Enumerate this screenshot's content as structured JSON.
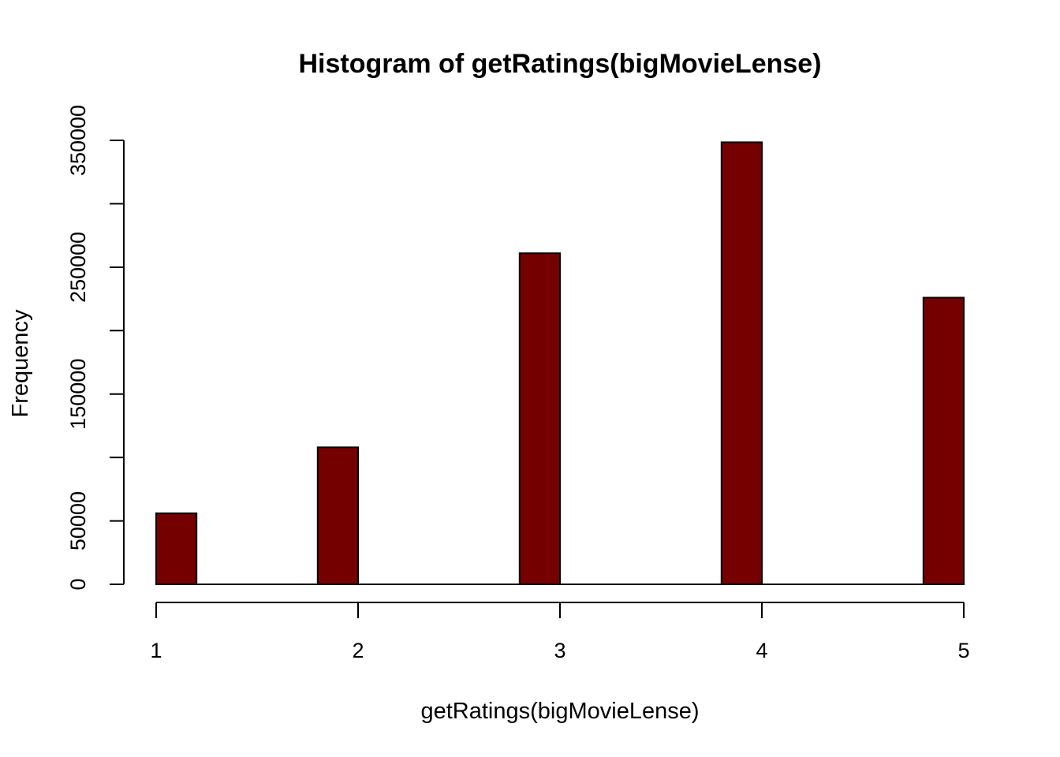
{
  "chart_data": {
    "type": "bar",
    "title": "Histogram of getRatings(bigMovieLense)",
    "xlabel": "getRatings(bigMovieLense)",
    "ylabel": "Frequency",
    "bar_color": "#750000",
    "outline_color": "#000000",
    "bins": [
      {
        "start": 1.0,
        "end": 1.2,
        "value": 56000
      },
      {
        "start": 1.2,
        "end": 1.4,
        "value": 0
      },
      {
        "start": 1.4,
        "end": 1.6,
        "value": 0
      },
      {
        "start": 1.6,
        "end": 1.8,
        "value": 0
      },
      {
        "start": 1.8,
        "end": 2.0,
        "value": 108000
      },
      {
        "start": 2.0,
        "end": 2.2,
        "value": 0
      },
      {
        "start": 2.2,
        "end": 2.4,
        "value": 0
      },
      {
        "start": 2.4,
        "end": 2.6,
        "value": 0
      },
      {
        "start": 2.6,
        "end": 2.8,
        "value": 0
      },
      {
        "start": 2.8,
        "end": 3.0,
        "value": 261000
      },
      {
        "start": 3.0,
        "end": 3.2,
        "value": 0
      },
      {
        "start": 3.2,
        "end": 3.4,
        "value": 0
      },
      {
        "start": 3.4,
        "end": 3.6,
        "value": 0
      },
      {
        "start": 3.6,
        "end": 3.8,
        "value": 0
      },
      {
        "start": 3.8,
        "end": 4.0,
        "value": 348500
      },
      {
        "start": 4.0,
        "end": 4.2,
        "value": 0
      },
      {
        "start": 4.2,
        "end": 4.4,
        "value": 0
      },
      {
        "start": 4.4,
        "end": 4.6,
        "value": 0
      },
      {
        "start": 4.6,
        "end": 4.8,
        "value": 0
      },
      {
        "start": 4.8,
        "end": 5.0,
        "value": 226000
      }
    ],
    "xlim": [
      1,
      5
    ],
    "ylim": [
      0,
      350000
    ],
    "x_ticks": [
      "1",
      "2",
      "3",
      "4",
      "5"
    ],
    "x_tick_values": [
      1,
      2,
      3,
      4,
      5
    ],
    "y_ticks": [
      0,
      50000,
      100000,
      150000,
      200000,
      250000,
      300000,
      350000
    ],
    "y_tick_labels": [
      "0",
      "50000",
      "",
      "150000",
      "",
      "250000",
      "",
      "350000"
    ],
    "grid": false
  }
}
